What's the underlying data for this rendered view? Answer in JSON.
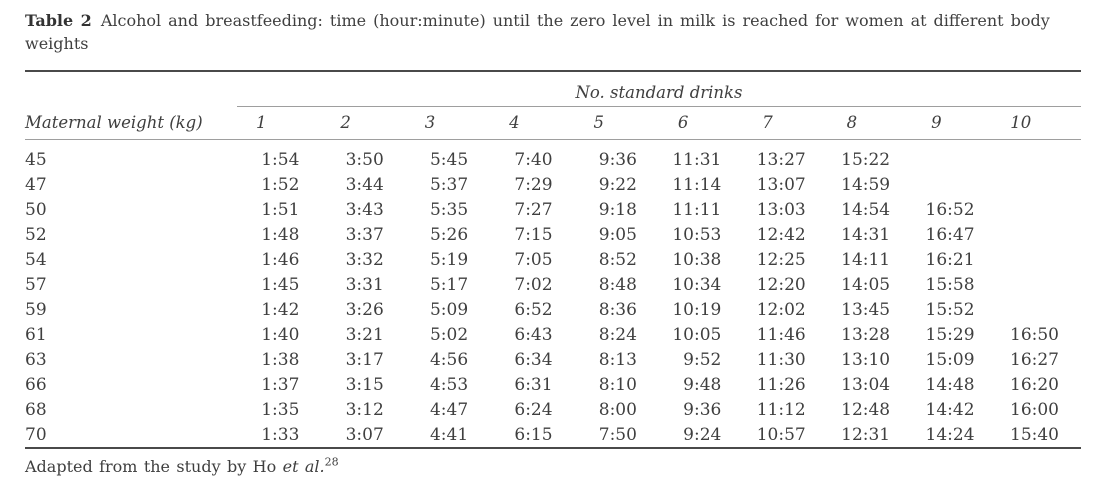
{
  "caption": {
    "label": "Table 2",
    "line1": "Alcohol and breastfeeding: time (hour:minute) until the zero level in milk is reached for women at different body",
    "line2": "weights"
  },
  "table": {
    "spanner": "No. standard drinks",
    "row_header": "Maternal weight (kg)",
    "drink_columns": [
      "1",
      "2",
      "3",
      "4",
      "5",
      "6",
      "7",
      "8",
      "9",
      "10"
    ],
    "rows": [
      {
        "weight": "45",
        "times": [
          "1:54",
          "3:50",
          "5:45",
          "7:40",
          "9:36",
          "11:31",
          "13:27",
          "15:22",
          "",
          ""
        ]
      },
      {
        "weight": "47",
        "times": [
          "1:52",
          "3:44",
          "5:37",
          "7:29",
          "9:22",
          "11:14",
          "13:07",
          "14:59",
          "",
          ""
        ]
      },
      {
        "weight": "50",
        "times": [
          "1:51",
          "3:43",
          "5:35",
          "7:27",
          "9:18",
          "11:11",
          "13:03",
          "14:54",
          "16:52",
          ""
        ]
      },
      {
        "weight": "52",
        "times": [
          "1:48",
          "3:37",
          "5:26",
          "7:15",
          "9:05",
          "10:53",
          "12:42",
          "14:31",
          "16:47",
          ""
        ]
      },
      {
        "weight": "54",
        "times": [
          "1:46",
          "3:32",
          "5:19",
          "7:05",
          "8:52",
          "10:38",
          "12:25",
          "14:11",
          "16:21",
          ""
        ]
      },
      {
        "weight": "57",
        "times": [
          "1:45",
          "3:31",
          "5:17",
          "7:02",
          "8:48",
          "10:34",
          "12:20",
          "14:05",
          "15:58",
          ""
        ]
      },
      {
        "weight": "59",
        "times": [
          "1:42",
          "3:26",
          "5:09",
          "6:52",
          "8:36",
          "10:19",
          "12:02",
          "13:45",
          "15:52",
          ""
        ]
      },
      {
        "weight": "61",
        "times": [
          "1:40",
          "3:21",
          "5:02",
          "6:43",
          "8:24",
          "10:05",
          "11:46",
          "13:28",
          "15:29",
          "16:50"
        ]
      },
      {
        "weight": "63",
        "times": [
          "1:38",
          "3:17",
          "4:56",
          "6:34",
          "8:13",
          "9:52",
          "11:30",
          "13:10",
          "15:09",
          "16:27"
        ]
      },
      {
        "weight": "66",
        "times": [
          "1:37",
          "3:15",
          "4:53",
          "6:31",
          "8:10",
          "9:48",
          "11:26",
          "13:04",
          "14:48",
          "16:20"
        ]
      },
      {
        "weight": "68",
        "times": [
          "1:35",
          "3:12",
          "4:47",
          "6:24",
          "8:00",
          "9:36",
          "11:12",
          "12:48",
          "14:42",
          "16:00"
        ]
      },
      {
        "weight": "70",
        "times": [
          "1:33",
          "3:07",
          "4:41",
          "6:15",
          "7:50",
          "9:24",
          "10:57",
          "12:31",
          "14:24",
          "15:40"
        ]
      }
    ]
  },
  "footnote": {
    "text_before": "Adapted from the study by Ho ",
    "italic": "et al.",
    "reference": "28"
  },
  "colors": {
    "text": "#3f3f3f",
    "rule_heavy": "#4a4a4a",
    "rule_light": "#9e9e9e",
    "background": "#ffffff"
  }
}
